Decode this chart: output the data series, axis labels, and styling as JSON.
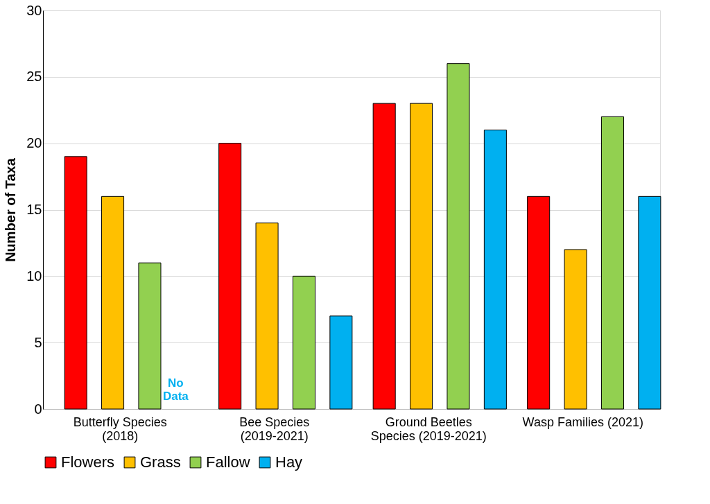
{
  "chart_data": {
    "type": "bar",
    "ylabel": "Number of Taxa",
    "categories": [
      "Butterfly Species (2018)",
      "Bee Species (2019-2021)",
      "Ground Beetles Species (2019-2021)",
      "Wasp Families (2021)"
    ],
    "series": [
      {
        "name": "Flowers",
        "color": "#ff0000",
        "values": [
          19,
          20,
          23,
          16
        ]
      },
      {
        "name": "Grass",
        "color": "#ffc000",
        "values": [
          16,
          14,
          23,
          12
        ]
      },
      {
        "name": "Fallow",
        "color": "#92d050",
        "values": [
          11,
          10,
          26,
          22
        ]
      },
      {
        "name": "Hay",
        "color": "#00b0f0",
        "values": [
          null,
          7,
          21,
          16
        ]
      }
    ],
    "ylim": [
      0,
      30
    ],
    "yticks": [
      0,
      5,
      10,
      15,
      20,
      25,
      30
    ],
    "grid": "y",
    "legend": "bottom",
    "annotations": [
      "No Data"
    ]
  }
}
